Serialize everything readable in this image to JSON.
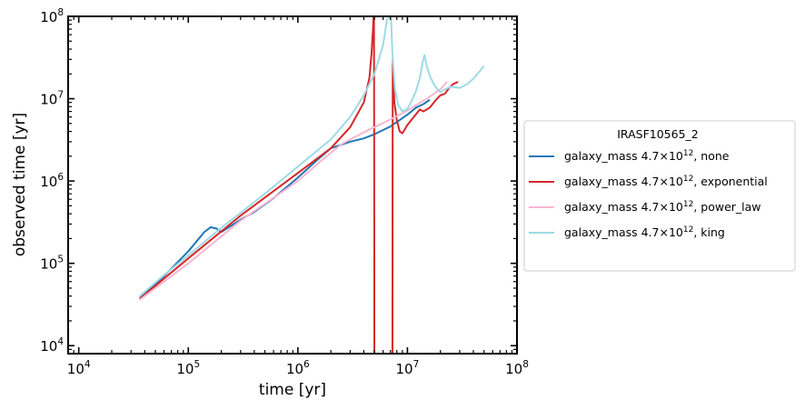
{
  "chart_data": {
    "type": "line",
    "title": "",
    "xlabel": "time [yr]",
    "ylabel": "observed time [yr]",
    "xscale": "log",
    "yscale": "log",
    "xlim": [
      8000,
      100000000
    ],
    "ylim": [
      8000,
      100000000
    ],
    "x_ticks": [
      {
        "value": 10000,
        "base": "10",
        "exp": "4"
      },
      {
        "value": 100000,
        "base": "10",
        "exp": "5"
      },
      {
        "value": 1000000,
        "base": "10",
        "exp": "6"
      },
      {
        "value": 10000000,
        "base": "10",
        "exp": "7"
      },
      {
        "value": 100000000,
        "base": "10",
        "exp": "8"
      }
    ],
    "y_ticks": [
      {
        "value": 10000,
        "base": "10",
        "exp": "4"
      },
      {
        "value": 100000,
        "base": "10",
        "exp": "5"
      },
      {
        "value": 1000000,
        "base": "10",
        "exp": "6"
      },
      {
        "value": 10000000,
        "base": "10",
        "exp": "7"
      },
      {
        "value": 100000000,
        "base": "10",
        "exp": "8"
      }
    ],
    "grid": false,
    "legend": {
      "title": "IRASF10565_2",
      "placement": "outside-right",
      "entries": [
        {
          "prefix": "galaxy_mass 4.7×10",
          "exp": "12",
          "suffix": ", none"
        },
        {
          "prefix": "galaxy_mass 4.7×10",
          "exp": "12",
          "suffix": ", exponential"
        },
        {
          "prefix": "galaxy_mass 4.7×10",
          "exp": "12",
          "suffix": ", power_law"
        },
        {
          "prefix": "galaxy_mass 4.7×10",
          "exp": "12",
          "suffix": ", king"
        }
      ]
    },
    "series": [
      {
        "color": "#1f77b4",
        "x": [
          36000,
          60000,
          100000,
          140000,
          160000,
          180000,
          200000,
          250000,
          300000,
          400000,
          600000,
          1000000,
          1500000,
          2000000,
          3000000,
          4000000,
          5000000,
          7000000,
          10000000,
          12000000,
          14000000,
          16000000
        ],
        "y": [
          38000,
          70000,
          140000,
          240000,
          275000,
          265000,
          240000,
          290000,
          340000,
          420000,
          620000,
          1100000,
          1800000,
          2500000,
          3000000,
          3300000,
          3700000,
          4600000,
          6400000,
          7800000,
          8600000,
          9700000
        ]
      },
      {
        "color": "#d62728",
        "x": [
          36000,
          100000,
          300000,
          1000000,
          2000000,
          3000000,
          4000000,
          4500000,
          4700000,
          4850000,
          4900000,
          4950000,
          4960000,
          4980000,
          4990000,
          7300000,
          7320000,
          7350000,
          7400000,
          7600000,
          8000000,
          8500000,
          9000000,
          10000000,
          12000000,
          13000000,
          14000000,
          16000000,
          18000000,
          20000000,
          22000000,
          24000000,
          26000000,
          29000000
        ],
        "y": [
          37000,
          115000,
          380000,
          1250000,
          2500000,
          4500000,
          9000000,
          18000000,
          35000000,
          70000000,
          100000000,
          100000000,
          20000000,
          1000000,
          8000,
          8000,
          1000000,
          30000000,
          20000000,
          9000000,
          5500000,
          4000000,
          3800000,
          4800000,
          6500000,
          7400000,
          7000000,
          7800000,
          9500000,
          11000000,
          11500000,
          13500000,
          15000000,
          16000000
        ]
      },
      {
        "color": "#f7b6d2",
        "x": [
          36000,
          100000,
          300000,
          1000000,
          1500000,
          2000000,
          2500000,
          3000000,
          4000000,
          5000000,
          7000000,
          10000000,
          15000000,
          20000000,
          23000000
        ],
        "y": [
          36000,
          100000,
          330000,
          1000000,
          1600000,
          2200000,
          2800000,
          3200000,
          3900000,
          4500000,
          5600000,
          7200000,
          10000000,
          13000000,
          16000000
        ]
      },
      {
        "color": "#9edae5",
        "x": [
          36000,
          60000,
          100000,
          200000,
          500000,
          1000000,
          2000000,
          3000000,
          4000000,
          5000000,
          6000000,
          6500000,
          6900000,
          7000000,
          7100000,
          7300000,
          7700000,
          8200000,
          9000000,
          10000000,
          11000000,
          12000000,
          13000000,
          13800000,
          14300000,
          15000000,
          16000000,
          17000000,
          18000000,
          20000000,
          22000000,
          25000000,
          30000000,
          35000000,
          40000000,
          45000000,
          50000000
        ],
        "y": [
          40000,
          72000,
          125000,
          270000,
          700000,
          1500000,
          3200000,
          6000000,
          11000000,
          20000000,
          45000000,
          90000000,
          100000000,
          100000000,
          90000000,
          35000000,
          13000000,
          8500000,
          7000000,
          7500000,
          9500000,
          12500000,
          18000000,
          28000000,
          34000000,
          25000000,
          19000000,
          16000000,
          14000000,
          12000000,
          13000000,
          14000000,
          13500000,
          15000000,
          17500000,
          21000000,
          25000000
        ]
      }
    ]
  }
}
